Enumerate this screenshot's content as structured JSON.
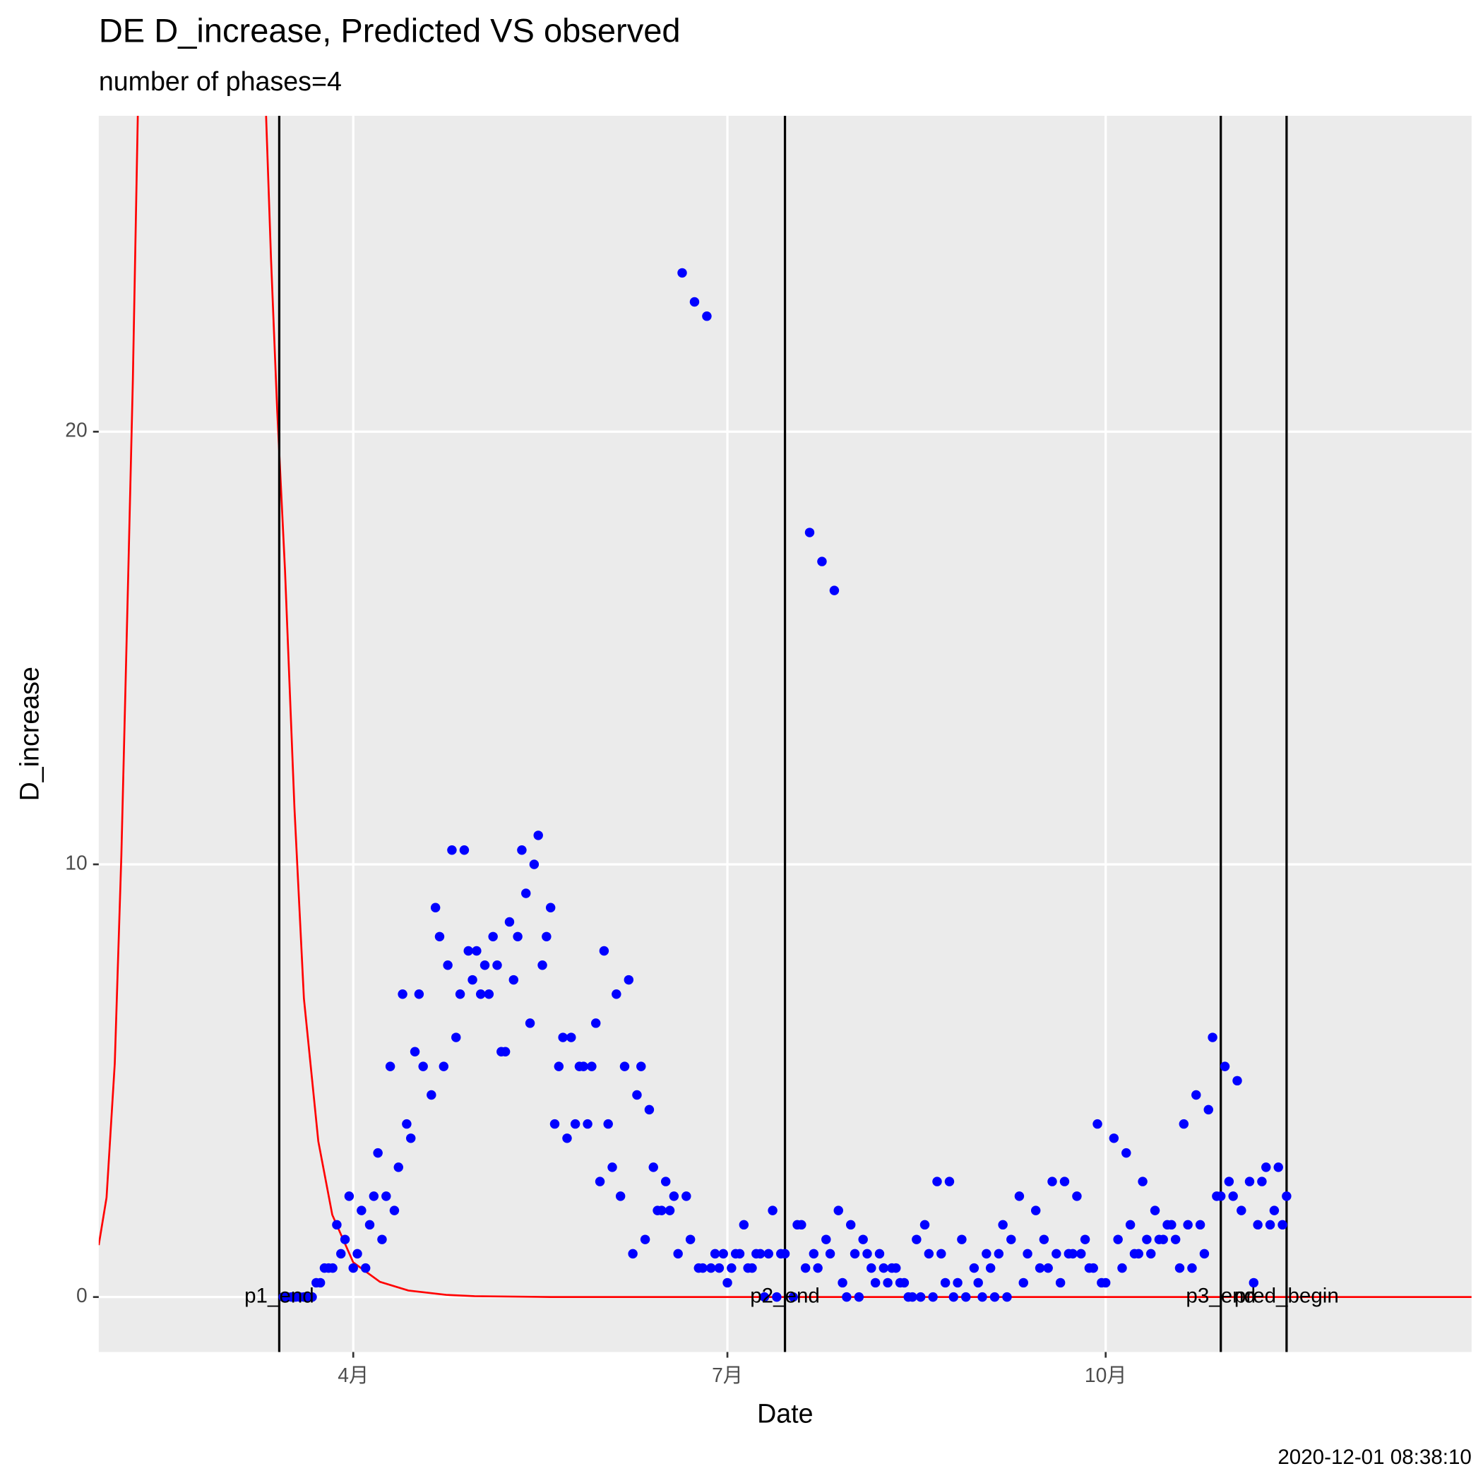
{
  "chart_data": {
    "type": "scatter",
    "title": "DE D_increase, Predicted VS observed",
    "subtitle": "number of phases=4",
    "x_label": "Date",
    "y_label": "D_increase",
    "caption": "2020-12-01 08:38:10",
    "xlim": [
      30.1,
      364
    ],
    "xticks": [
      {
        "value": 92,
        "label": "4月"
      },
      {
        "value": 183,
        "label": "7月"
      },
      {
        "value": 275,
        "label": "10月"
      }
    ],
    "ylim": [
      -1.27,
      27.3
    ],
    "yticks": [
      0,
      10,
      20
    ],
    "grid": true,
    "color": "#0000ff",
    "x": [
      75,
      76,
      77,
      78,
      79,
      80,
      81,
      82,
      83,
      84,
      85,
      86,
      87,
      88,
      89,
      90,
      91,
      92,
      93,
      94,
      95,
      96,
      97,
      98,
      99,
      100,
      101,
      102,
      103,
      104,
      105,
      106,
      107,
      108,
      109,
      111,
      112,
      113,
      114,
      115,
      116,
      117,
      118,
      119,
      120,
      121,
      122,
      123,
      124,
      125,
      126,
      127,
      128,
      129,
      130,
      131,
      132,
      133,
      134,
      135,
      136,
      137,
      138,
      139,
      140,
      141,
      142,
      143,
      144,
      145,
      146,
      147,
      148,
      149,
      150,
      151,
      152,
      153,
      154,
      155,
      156,
      157,
      158,
      159,
      160,
      161,
      162,
      163,
      164,
      165,
      166,
      167,
      168,
      169,
      170,
      171,
      172,
      173,
      174,
      175,
      176,
      177,
      178,
      179,
      180,
      181,
      182,
      183,
      184,
      185,
      186,
      187,
      188,
      189,
      190,
      191,
      192,
      193,
      194,
      195,
      196,
      197,
      199,
      200,
      201,
      202,
      203,
      204,
      205,
      206,
      207,
      208,
      209,
      210,
      211,
      212,
      213,
      214,
      215,
      216,
      217,
      218,
      219,
      220,
      221,
      222,
      223,
      224,
      225,
      226,
      227,
      228,
      229,
      230,
      231,
      232,
      233,
      234,
      235,
      236,
      237,
      238,
      239,
      240,
      241,
      243,
      244,
      245,
      246,
      247,
      248,
      249,
      250,
      251,
      252,
      254,
      255,
      256,
      258,
      259,
      260,
      261,
      262,
      263,
      264,
      265,
      266,
      267,
      268,
      269,
      270,
      271,
      272,
      273,
      274,
      275,
      277,
      278,
      279,
      280,
      281,
      282,
      283,
      284,
      285,
      286,
      287,
      288,
      289,
      290,
      291,
      292,
      293,
      294,
      295,
      296,
      297,
      298,
      299,
      300,
      301,
      302,
      303,
      304,
      305,
      306,
      307,
      308,
      310,
      311,
      312,
      313,
      314,
      315,
      316,
      317,
      318,
      319
    ],
    "values": [
      0,
      0,
      0,
      0,
      0,
      0,
      0,
      0,
      0.33,
      0.33,
      0.67,
      0.67,
      0.67,
      1.67,
      1,
      1.33,
      2.33,
      0.67,
      1,
      2,
      0.67,
      1.67,
      2.33,
      3.33,
      1.33,
      2.33,
      5.33,
      2,
      3,
      7,
      4,
      3.67,
      5.67,
      7,
      5.33,
      4.67,
      9,
      8.33,
      5.33,
      7.67,
      10.33,
      6,
      7,
      10.33,
      8,
      7.33,
      8,
      7,
      7.67,
      7,
      8.33,
      7.67,
      5.67,
      5.67,
      8.67,
      7.33,
      8.33,
      10.33,
      9.33,
      6.33,
      10,
      10.67,
      7.67,
      8.33,
      9,
      4,
      5.33,
      6,
      3.67,
      6,
      4,
      5.33,
      5.33,
      4,
      5.33,
      6.33,
      2.67,
      8,
      4,
      3,
      7,
      2.33,
      5.33,
      7.33,
      1,
      4.67,
      5.33,
      1.33,
      4.33,
      3,
      2,
      2,
      2.67,
      2,
      2.33,
      1,
      23.67,
      2.33,
      1.33,
      23,
      0.67,
      0.67,
      22.67,
      0.67,
      1,
      0.67,
      1,
      0.33,
      0.67,
      1,
      1,
      1.67,
      0.67,
      0.67,
      1,
      1,
      0,
      1,
      2,
      0,
      1,
      1,
      0,
      1.67,
      1.67,
      0.67,
      17.67,
      1,
      0.67,
      17,
      1.33,
      1,
      16.33,
      2,
      0.33,
      0,
      1.67,
      1,
      0,
      1.33,
      1,
      0.67,
      0.33,
      1,
      0.67,
      0.33,
      0.67,
      0.67,
      0.33,
      0.33,
      0,
      0,
      1.33,
      0,
      1.67,
      1,
      0,
      2.67,
      1,
      0.33,
      2.67,
      0,
      0.33,
      1.33,
      0,
      0.67,
      0.33,
      0,
      1,
      0.67,
      0,
      1,
      1.67,
      0,
      1.33,
      2.33,
      0.33,
      1,
      2,
      0.67,
      1.33,
      0.67,
      2.67,
      1,
      0.33,
      2.67,
      1,
      1,
      2.33,
      1,
      1.33,
      0.67,
      0.67,
      4,
      0.33,
      0.33,
      3.67,
      1.33,
      0.67,
      3.33,
      1.67,
      1,
      1,
      2.67,
      1.33,
      1,
      2,
      1.33,
      1.33,
      1.67,
      1.67,
      1.33,
      0.67,
      4,
      1.67,
      0.67,
      4.67,
      1.67,
      1,
      4.33,
      6,
      2.33,
      2.33,
      5.33,
      2.67,
      2.33,
      5,
      2,
      2.67,
      0.33,
      1.67,
      2.67,
      3,
      1.67,
      2,
      3,
      1.67,
      2.33
    ],
    "line": {
      "color": "#ff0000",
      "x": [
        30.1,
        32,
        34,
        35.6,
        37.3,
        38.4,
        39.6,
        55,
        70.8,
        72,
        73.5,
        75.4,
        77.7,
        80,
        83.5,
        86.9,
        92,
        98.5,
        105.4,
        114.6,
        121.5,
        140,
        200,
        260,
        320,
        364
      ],
      "values": [
        1.2,
        2.3,
        5.4,
        10.2,
        16.8,
        21.2,
        27.3,
        null,
        27.3,
        24,
        20.5,
        16.8,
        11.3,
        6.9,
        3.6,
        1.9,
        0.8,
        0.35,
        0.15,
        0.05,
        0.02,
        0,
        0,
        0,
        0,
        0
      ]
    },
    "vlines": [
      {
        "x": 74,
        "label": "p1_end"
      },
      {
        "x": 197,
        "label": "p2_end"
      },
      {
        "x": 303,
        "label": "p3_end"
      },
      {
        "x": 319,
        "label": "pred_begin"
      }
    ]
  }
}
